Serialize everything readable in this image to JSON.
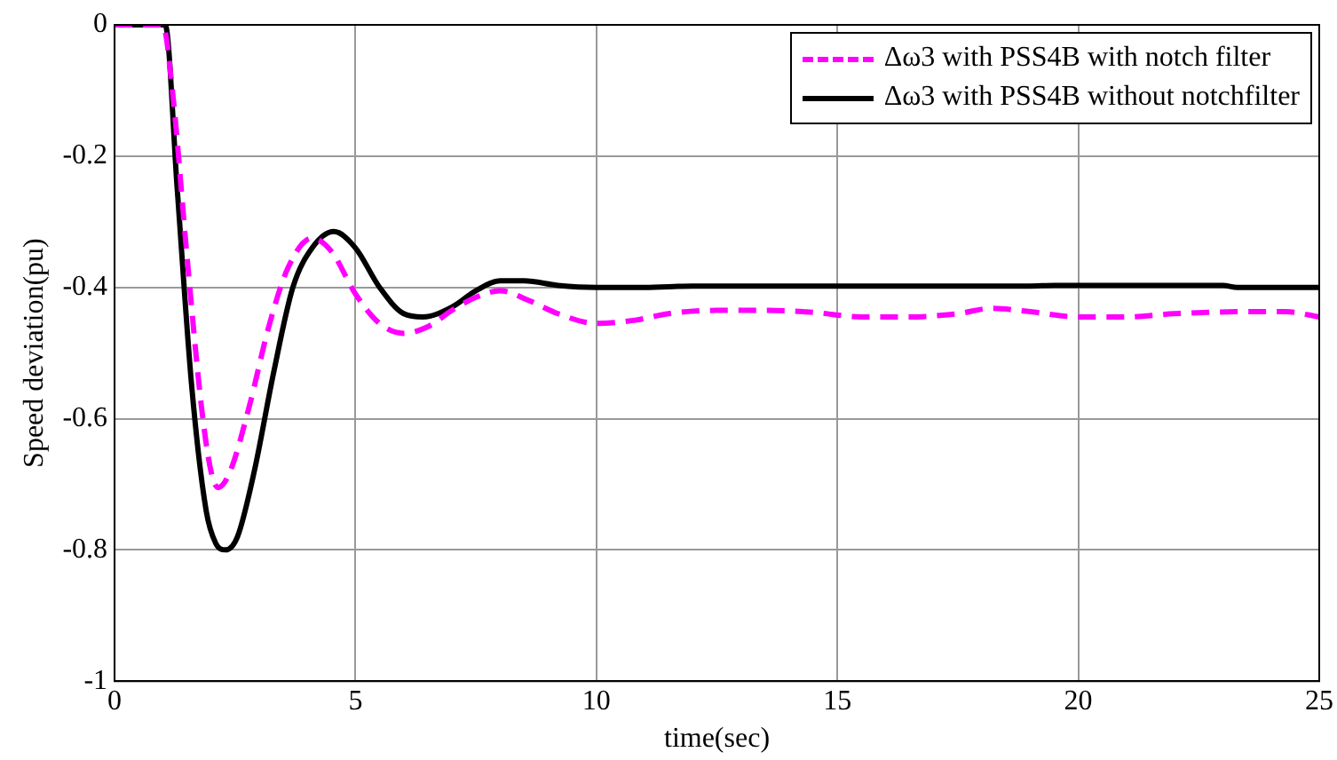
{
  "chart_data": {
    "type": "line",
    "xlabel": "time(sec)",
    "ylabel": "Speed deviation(pu)",
    "xlim": [
      0,
      25
    ],
    "xticks": [
      0,
      5,
      10,
      15,
      20,
      25
    ],
    "ylim": [
      -1,
      0
    ],
    "yticks": [
      -1,
      -0.8,
      -0.6,
      -0.4,
      -0.2,
      0
    ],
    "grid": true,
    "legend": "top right",
    "marker": "none",
    "series": [
      {
        "name": "Δω3 with PSS4B with notch filter",
        "color": "#ff00ff",
        "line_style": "dashed",
        "x": [
          0,
          1.0,
          1.2,
          1.5,
          1.8,
          2.0,
          2.15,
          2.4,
          2.8,
          3.2,
          3.6,
          4.1,
          4.5,
          5.0,
          5.5,
          6.0,
          6.5,
          7.0,
          7.5,
          8.0,
          8.6,
          9.2,
          10.0,
          10.8,
          11.5,
          12.5,
          13.5,
          14.5,
          15.5,
          16.5,
          17.5,
          18.2,
          19.0,
          20.0,
          21.0,
          22.0,
          23.5,
          24.3,
          25
        ],
        "values": [
          0,
          0,
          -0.1,
          -0.35,
          -0.58,
          -0.68,
          -0.705,
          -0.68,
          -0.58,
          -0.46,
          -0.37,
          -0.325,
          -0.345,
          -0.41,
          -0.455,
          -0.47,
          -0.46,
          -0.435,
          -0.415,
          -0.405,
          -0.42,
          -0.44,
          -0.455,
          -0.45,
          -0.44,
          -0.435,
          -0.435,
          -0.438,
          -0.445,
          -0.445,
          -0.44,
          -0.432,
          -0.437,
          -0.445,
          -0.445,
          -0.44,
          -0.437,
          -0.437,
          -0.445
        ]
      },
      {
        "name": "Δω3 with PSS4B without notchfilter",
        "color": "#000000",
        "line_style": "solid",
        "x": [
          0,
          1.05,
          1.3,
          1.6,
          1.9,
          2.1,
          2.3,
          2.55,
          2.9,
          3.3,
          3.7,
          4.1,
          4.55,
          5.0,
          5.5,
          6.0,
          6.4,
          7.0,
          7.5,
          8.0,
          8.5,
          9.2,
          10.0,
          11.0,
          12.0,
          15.0,
          19.0,
          19.5,
          23.0,
          23.3,
          25
        ],
        "values": [
          0,
          0,
          -0.25,
          -0.55,
          -0.74,
          -0.79,
          -0.8,
          -0.78,
          -0.68,
          -0.53,
          -0.4,
          -0.34,
          -0.315,
          -0.34,
          -0.4,
          -0.44,
          -0.445,
          -0.43,
          -0.405,
          -0.39,
          -0.39,
          -0.397,
          -0.4,
          -0.4,
          -0.398,
          -0.398,
          -0.398,
          -0.397,
          -0.397,
          -0.4,
          -0.4
        ]
      }
    ]
  }
}
